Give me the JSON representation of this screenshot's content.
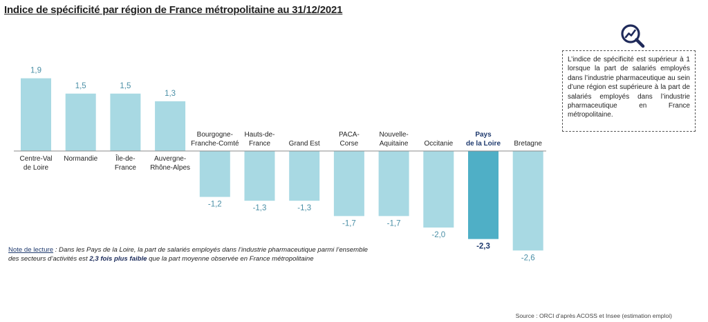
{
  "title": "Indice de spécificité par région de France métropolitaine au 31/12/2021",
  "info_box": "L’indice de spécificité est supérieur à 1 lorsque la part de salariés employés dans l’industrie pharmaceutique au sein d’une région est supérieure à la part de salariés employés dans l’industrie pharmaceutique en France métropolitaine.",
  "note": {
    "label": "Note de lecture",
    "text_before": " : Dans les Pays de la Loire, la part de salariés employés dans l’industrie pharmaceutique parmi l’ensemble des secteurs d’activités est ",
    "bold": "2,3 fois plus faible",
    "text_after": " que la part moyenne observée en France métropolitaine"
  },
  "source": "Source : ORCI d’après ACOSS et Insee (estimation emploi)",
  "logo_icon": "magnifier-chart-icon",
  "colors": {
    "bar": "#a8d9e3",
    "bar_highlight": "#4fafc6",
    "label": "#4a8fa6",
    "highlight_label": "#1f3a6e",
    "axis": "#8a8a8a"
  },
  "chart_data": {
    "type": "bar",
    "categories": [
      [
        "Centre-Val",
        "de Loire"
      ],
      [
        "Normandie"
      ],
      [
        "Île-de-",
        "France"
      ],
      [
        "Auvergne-",
        "Rhône-Alpes"
      ],
      [
        "Bourgogne-",
        "Franche-Comté"
      ],
      [
        "Hauts-de-",
        "France"
      ],
      [
        "Grand Est"
      ],
      [
        "PACA-",
        "Corse"
      ],
      [
        "Nouvelle-",
        "Aquitaine"
      ],
      [
        "Occitanie"
      ],
      [
        "Pays",
        "de la Loire"
      ],
      [
        "Bretagne"
      ]
    ],
    "values": [
      1.9,
      1.5,
      1.5,
      1.3,
      -1.2,
      -1.3,
      -1.3,
      -1.7,
      -1.7,
      -2.0,
      -2.3,
      -2.6
    ],
    "value_labels": [
      "1,9",
      "1,5",
      "1,5",
      "1,3",
      "-1,2",
      "-1,3",
      "-1,3",
      "-1,7",
      "-1,7",
      "-2,0",
      "-2,3",
      "-2,6"
    ],
    "highlight_index": 10,
    "ylim": [
      -2.6,
      1.9
    ],
    "grid": false,
    "legend": "none"
  }
}
